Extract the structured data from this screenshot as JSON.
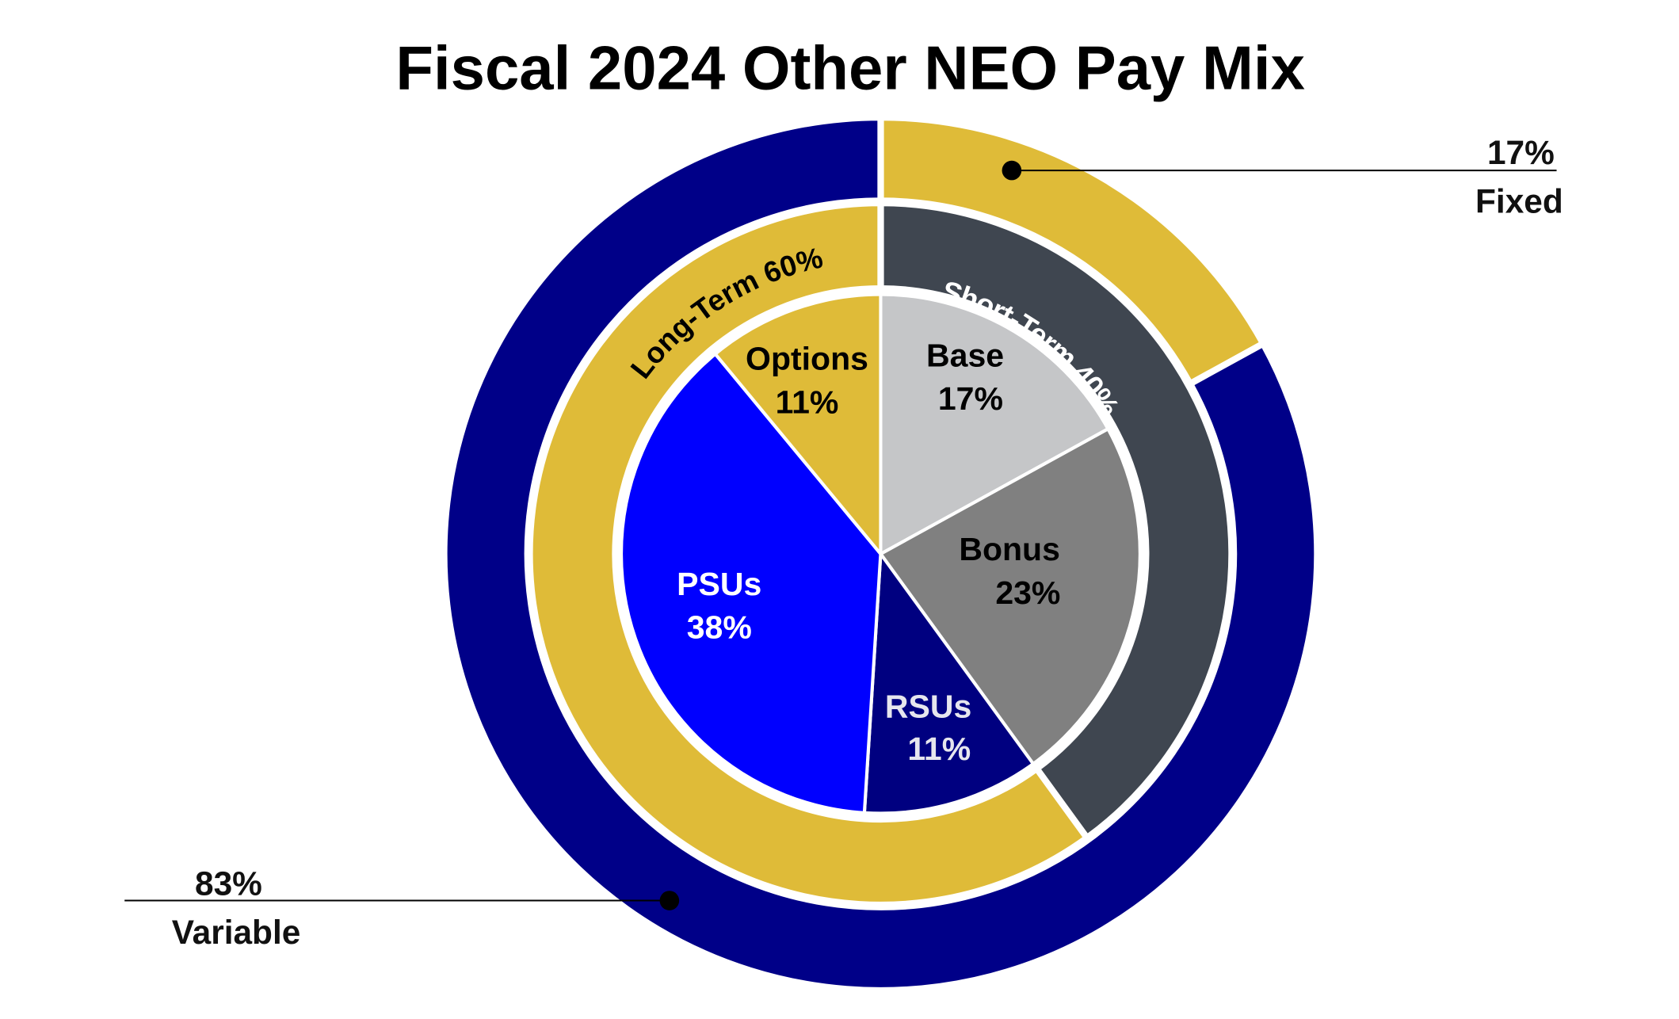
{
  "chart_data": {
    "type": "pie",
    "title": "Fiscal 2024 Other NEO Pay Mix",
    "rings": [
      {
        "ring": "outer",
        "slices": [
          {
            "name": "Fixed",
            "value": 17,
            "label": "17%",
            "color": "#DFBB38"
          },
          {
            "name": "Variable",
            "value": 83,
            "label": "83%",
            "color": "#000088"
          }
        ]
      },
      {
        "ring": "middle",
        "slices": [
          {
            "name": "Short-Term",
            "value": 40,
            "label": "Short-Term 40%",
            "color": "#3F4650"
          },
          {
            "name": "Long-Term",
            "value": 60,
            "label": "Long-Term 60%",
            "color": "#DFBB38"
          }
        ]
      },
      {
        "ring": "inner",
        "slices": [
          {
            "name": "Base",
            "value": 17,
            "label": "17%",
            "color": "#C5C6C8"
          },
          {
            "name": "Bonus",
            "value": 23,
            "label": "23%",
            "color": "#808080"
          },
          {
            "name": "RSUs",
            "value": 11,
            "label": "11%",
            "color": "#000080"
          },
          {
            "name": "PSUs",
            "value": 38,
            "label": "38%",
            "color": "#0000FF"
          },
          {
            "name": "Options",
            "value": 11,
            "label": "11%",
            "color": "#DFBB38"
          }
        ]
      }
    ]
  }
}
